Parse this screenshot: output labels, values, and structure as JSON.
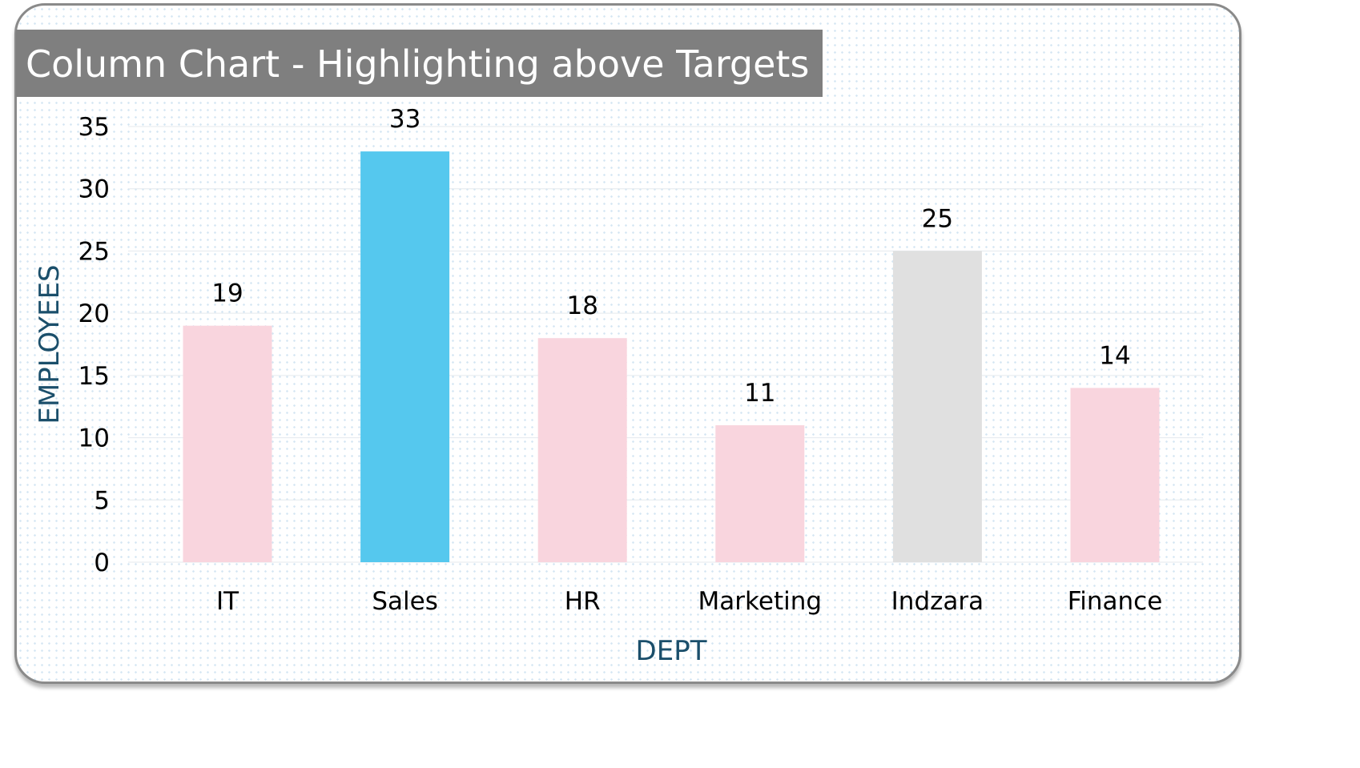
{
  "chart_data": {
    "type": "bar",
    "title": "Column Chart - Highlighting above Targets",
    "xlabel": "DEPT",
    "ylabel": "EMPLOYEES",
    "categories": [
      "IT",
      "Sales",
      "HR",
      "Marketing",
      "Indzara",
      "Finance"
    ],
    "values": [
      19,
      33,
      18,
      11,
      25,
      14
    ],
    "bar_colors": [
      "#f9d5de",
      "#55c8ee",
      "#f9d5de",
      "#f9d5de",
      "#e0e0e0",
      "#f9d5de"
    ],
    "ylim": [
      0,
      35
    ],
    "yticks": [
      "0",
      "5",
      "10",
      "15",
      "20",
      "25",
      "30",
      "35"
    ],
    "data_labels": [
      "19",
      "33",
      "18",
      "11",
      "25",
      "14"
    ],
    "grid": true,
    "legend": "none"
  },
  "colors": {
    "title_bar": "#7f7f7f",
    "axis_title": "#1b4f6b",
    "gridline": "#e4e9ee"
  }
}
